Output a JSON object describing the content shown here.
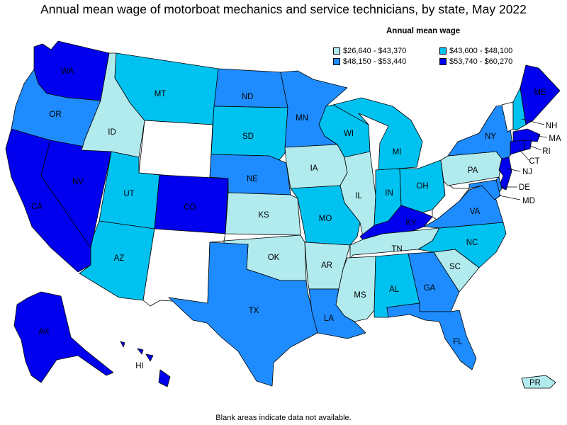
{
  "title": "Annual mean wage of motorboat mechanics and service technicians, by state, May 2022",
  "legend": {
    "title": "Annual mean wage",
    "items": [
      {
        "label": "$26,640 - $43,370",
        "color": "#b2ebee"
      },
      {
        "label": "$43,600 - $48,100",
        "color": "#00c2f0"
      },
      {
        "label": "$48,150 - $53,440",
        "color": "#1e8cff"
      },
      {
        "label": "$53,740 - $60,270",
        "color": "#0000ee"
      }
    ]
  },
  "footnote": "Blank areas indicate data not available.",
  "states": {
    "WA": {
      "label": "WA",
      "bin": 3
    },
    "OR": {
      "label": "OR",
      "bin": 2
    },
    "CA": {
      "label": "CA",
      "bin": 3
    },
    "NV": {
      "label": "NV",
      "bin": 3
    },
    "ID": {
      "label": "ID",
      "bin": 0
    },
    "MT": {
      "label": "MT",
      "bin": 1
    },
    "WY": {
      "label": "",
      "bin": -1
    },
    "UT": {
      "label": "UT",
      "bin": 1
    },
    "AZ": {
      "label": "AZ",
      "bin": 1
    },
    "CO": {
      "label": "CO",
      "bin": 3
    },
    "NM": {
      "label": "",
      "bin": -1
    },
    "ND": {
      "label": "ND",
      "bin": 2
    },
    "SD": {
      "label": "SD",
      "bin": 1
    },
    "NE": {
      "label": "NE",
      "bin": 2
    },
    "KS": {
      "label": "KS",
      "bin": 0
    },
    "OK": {
      "label": "OK",
      "bin": 0
    },
    "TX": {
      "label": "TX",
      "bin": 2
    },
    "MN": {
      "label": "MN",
      "bin": 2
    },
    "IA": {
      "label": "IA",
      "bin": 0
    },
    "MO": {
      "label": "MO",
      "bin": 1
    },
    "AR": {
      "label": "AR",
      "bin": 0
    },
    "LA": {
      "label": "LA",
      "bin": 2
    },
    "WI": {
      "label": "WI",
      "bin": 1
    },
    "IL": {
      "label": "IL",
      "bin": 0
    },
    "MI": {
      "label": "MI",
      "bin": 1
    },
    "IN": {
      "label": "IN",
      "bin": 1
    },
    "OH": {
      "label": "OH",
      "bin": 1
    },
    "KY": {
      "label": "KY",
      "bin": 3
    },
    "TN": {
      "label": "TN",
      "bin": 0
    },
    "MS": {
      "label": "MS",
      "bin": 0
    },
    "AL": {
      "label": "AL",
      "bin": 1
    },
    "GA": {
      "label": "GA",
      "bin": 2
    },
    "FL": {
      "label": "FL",
      "bin": 2
    },
    "SC": {
      "label": "SC",
      "bin": 0
    },
    "NC": {
      "label": "NC",
      "bin": 1
    },
    "VA": {
      "label": "VA",
      "bin": 2
    },
    "WV": {
      "label": "",
      "bin": -1
    },
    "PA": {
      "label": "PA",
      "bin": 0
    },
    "NY": {
      "label": "NY",
      "bin": 2
    },
    "VT": {
      "label": "",
      "bin": -1
    },
    "NH": {
      "label": "NH",
      "bin": 1
    },
    "ME": {
      "label": "ME",
      "bin": 3
    },
    "MA": {
      "label": "MA",
      "bin": 3
    },
    "RI": {
      "label": "RI",
      "bin": 3
    },
    "CT": {
      "label": "CT",
      "bin": 3
    },
    "NJ": {
      "label": "NJ",
      "bin": 3
    },
    "DE": {
      "label": "DE",
      "bin": 2
    },
    "MD": {
      "label": "MD",
      "bin": 2
    },
    "AK": {
      "label": "AK",
      "bin": 3
    },
    "HI": {
      "label": "HI",
      "bin": 3
    },
    "PR": {
      "label": "PR",
      "bin": 0
    }
  }
}
